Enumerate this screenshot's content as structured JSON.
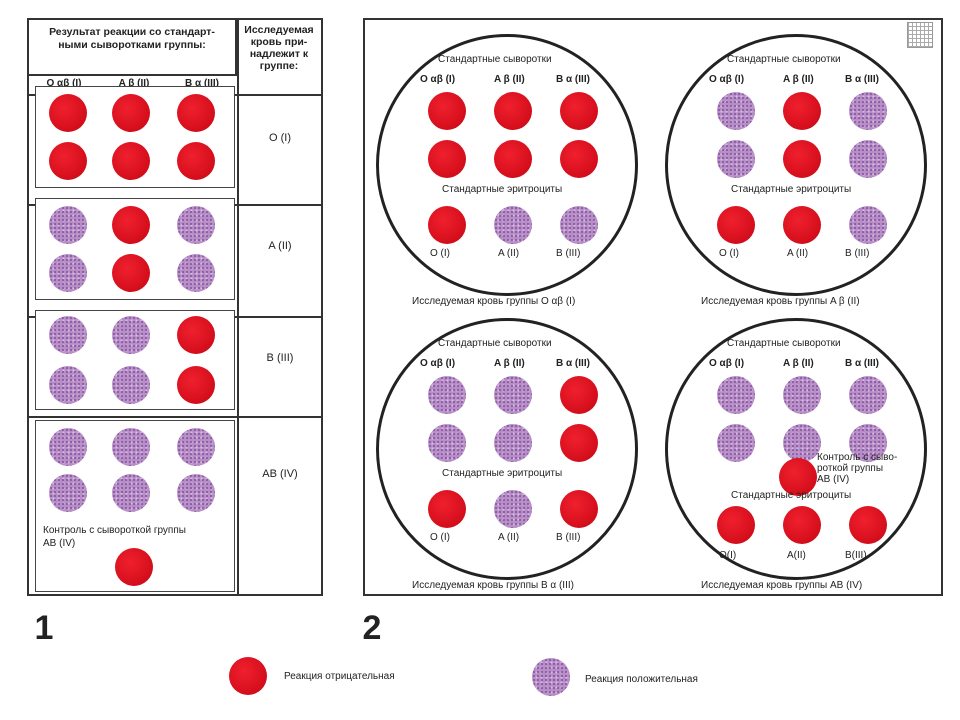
{
  "panel1": {
    "header_left": [
      "Результат реакции со стандарт-",
      "ными сыворотками группы:"
    ],
    "header_right": [
      "Исследуемая",
      "кровь при-",
      "надлежит к",
      "группе:"
    ],
    "columns": [
      "O αβ (I)",
      "A β (II)",
      "B α (III)"
    ],
    "rows": [
      {
        "label": "O (I)",
        "dots": [
          "neg",
          "neg",
          "neg",
          "neg",
          "neg",
          "neg"
        ]
      },
      {
        "label": "A (II)",
        "dots": [
          "pos",
          "neg",
          "pos",
          "pos",
          "neg",
          "pos"
        ]
      },
      {
        "label": "B (III)",
        "dots": [
          "pos",
          "pos",
          "neg",
          "pos",
          "pos",
          "neg"
        ]
      },
      {
        "label": "AB (IV)",
        "dots": [
          "pos",
          "pos",
          "pos",
          "pos",
          "pos",
          "pos"
        ]
      }
    ],
    "control_note": [
      "Контроль с сывороткой группы",
      "AB (IV)"
    ],
    "control_dot": "neg"
  },
  "panel2": {
    "circles": [
      {
        "serums_title": "Стандартные сыворотки",
        "serums": [
          "O αβ (I)",
          "A β (II)",
          "B α (III)"
        ],
        "serum_dots": [
          "neg",
          "neg",
          "neg",
          "neg",
          "neg",
          "neg"
        ],
        "erythro_title": "Стандартные эритроциты",
        "erythro_dots": [
          "neg",
          "pos",
          "pos"
        ],
        "erythro_labels": [
          "O (I)",
          "A (II)",
          "B (III)"
        ],
        "caption": "Исследуемая кровь группы O αβ (I)"
      },
      {
        "serums_title": "Стандартные сыворотки",
        "serums": [
          "O αβ (I)",
          "A β (II)",
          "B α (III)"
        ],
        "serum_dots": [
          "pos",
          "neg",
          "pos",
          "pos",
          "neg",
          "pos"
        ],
        "erythro_title": "Стандартные эритроциты",
        "erythro_dots": [
          "neg",
          "neg",
          "pos"
        ],
        "erythro_labels": [
          "O (I)",
          "A (II)",
          "B (III)"
        ],
        "caption": "Исследуемая кровь группы A β (II)"
      },
      {
        "serums_title": "Стандартные сыворотки",
        "serums": [
          "O αβ (I)",
          "A β (II)",
          "B α (III)"
        ],
        "serum_dots": [
          "pos",
          "pos",
          "neg",
          "pos",
          "pos",
          "neg"
        ],
        "erythro_title": "Стандартные эритроциты",
        "erythro_dots": [
          "neg",
          "pos",
          "neg"
        ],
        "erythro_labels": [
          "O (I)",
          "A (II)",
          "B (III)"
        ],
        "caption": "Исследуемая кровь группы B α (III)"
      },
      {
        "serums_title": "Стандартные сыворотки",
        "serums": [
          "O αβ (I)",
          "A β (II)",
          "B α (III)"
        ],
        "serum_dots": [
          "pos",
          "pos",
          "pos",
          "pos",
          "pos",
          "pos"
        ],
        "control_note": [
          "Контроль с сыво-",
          "роткой группы",
          "AB (IV)"
        ],
        "control_dot": "neg",
        "erythro_title": "Стандартные эритроциты",
        "erythro_dots": [
          "neg",
          "neg",
          "neg"
        ],
        "erythro_labels": [
          "O(I)",
          "A(II)",
          "B(III)"
        ],
        "caption": "Исследуемая кровь группы AB (IV)"
      }
    ]
  },
  "figure_numbers": [
    "1",
    "2"
  ],
  "legend": {
    "negative": "Реакция отрицательная",
    "positive": "Реакция положительная"
  },
  "colors": {
    "negative": "#d8101e",
    "positive": "#b78fc7",
    "border": "#333333"
  }
}
